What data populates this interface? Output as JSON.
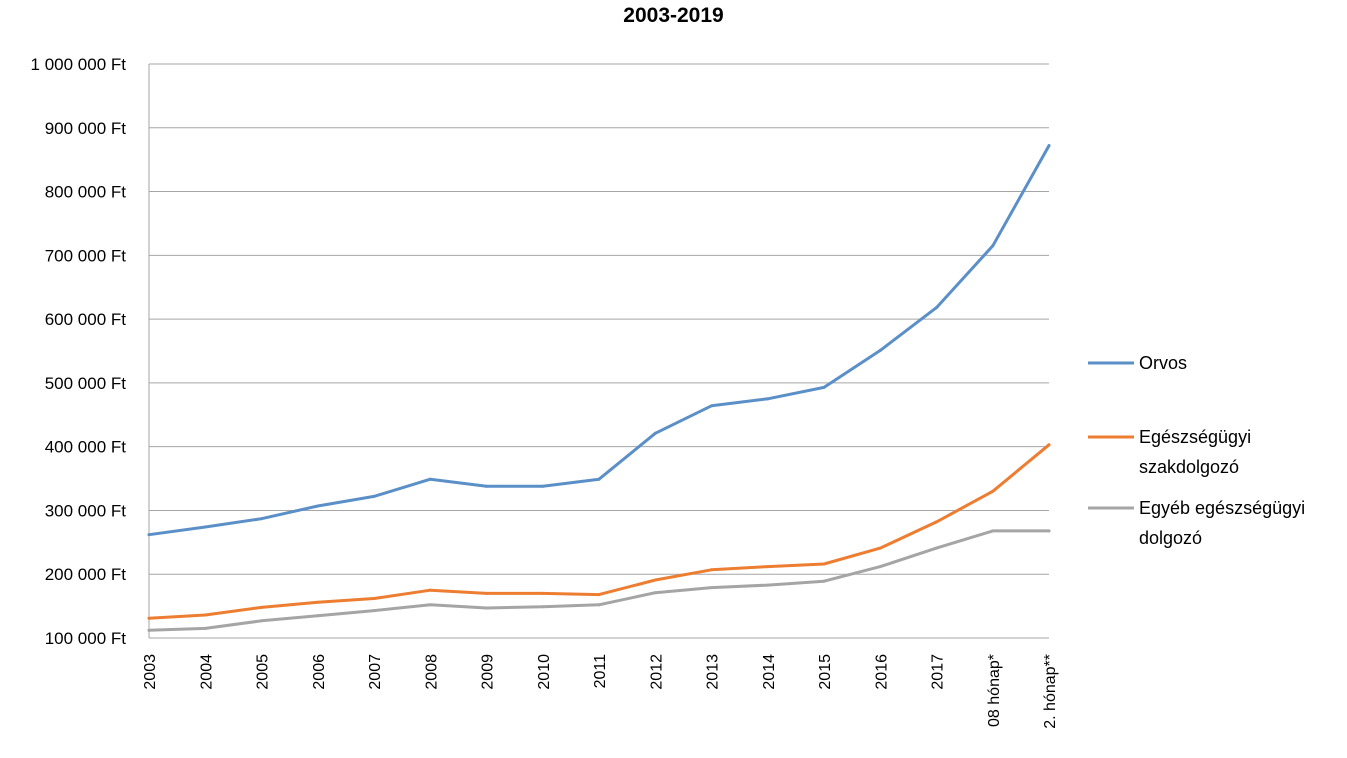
{
  "chart_data": {
    "type": "line",
    "title": "2003-2019",
    "xlabel": "",
    "ylabel": "",
    "categories": [
      "2003",
      "2004",
      "2005",
      "2006",
      "2007",
      "2008",
      "2009",
      "2010",
      "2011",
      "2012",
      "2013",
      "2014",
      "2015",
      "2016",
      "2017",
      "08 hónap*",
      "2. hónap**"
    ],
    "ylim": [
      100000,
      1000000
    ],
    "yticks": [
      {
        "value": 100000,
        "label": "100 000 Ft"
      },
      {
        "value": 200000,
        "label": "200 000 Ft"
      },
      {
        "value": 300000,
        "label": "300 000 Ft"
      },
      {
        "value": 400000,
        "label": "400 000 Ft"
      },
      {
        "value": 500000,
        "label": "500 000 Ft"
      },
      {
        "value": 600000,
        "label": "600 000 Ft"
      },
      {
        "value": 700000,
        "label": "700 000 Ft"
      },
      {
        "value": 800000,
        "label": "800 000 Ft"
      },
      {
        "value": 900000,
        "label": "900 000 Ft"
      },
      {
        "value": 1000000,
        "label": "1 000 000 Ft"
      }
    ],
    "grid": true,
    "legend_position": "right",
    "series": [
      {
        "name": "Orvos",
        "color": "#5b8fc7",
        "values": [
          262000,
          274000,
          287000,
          307000,
          322000,
          349000,
          338000,
          338000,
          349000,
          421000,
          464000,
          475000,
          493000,
          551000,
          618000,
          715000,
          872000
        ]
      },
      {
        "name": "Egészségügyi szakdolgozó",
        "legend_lines": [
          "Egészségügyi",
          "szakdolgozó"
        ],
        "color": "#ed7d31",
        "values": [
          131000,
          136000,
          148000,
          156000,
          162000,
          175000,
          170000,
          170000,
          168000,
          191000,
          207000,
          212000,
          216000,
          241000,
          282000,
          330000,
          403000
        ]
      },
      {
        "name": "Egyéb egészségügyi dolgozó",
        "legend_lines": [
          "Egyéb egészségügyi",
          "dolgozó"
        ],
        "color": "#a5a5a5",
        "values": [
          112000,
          115000,
          127000,
          135000,
          143000,
          152000,
          147000,
          149000,
          152000,
          171000,
          179000,
          183000,
          189000,
          212000,
          241000,
          268000,
          268000
        ]
      }
    ]
  }
}
